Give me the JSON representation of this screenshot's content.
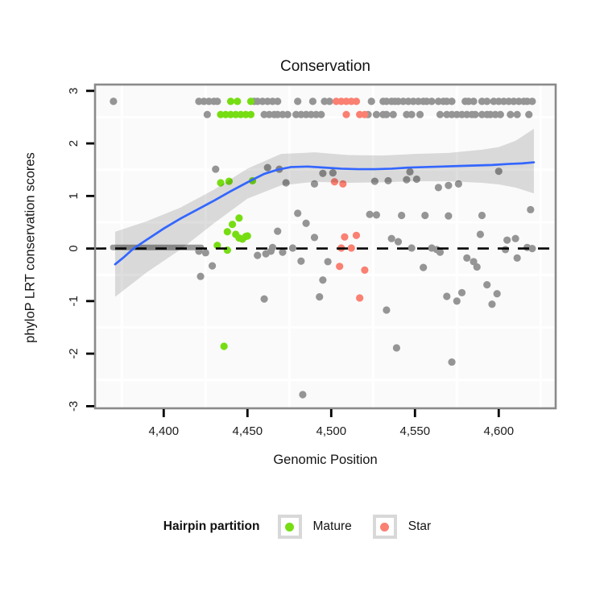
{
  "title": "Conservation",
  "axes": {
    "x": {
      "label": "Genomic Position",
      "ticks": [
        4400,
        4450,
        4500,
        4550,
        4600
      ],
      "tick_labels": [
        "4,400",
        "4,450",
        "4,500",
        "4,550",
        "4,600"
      ],
      "minor_gridlines": [
        4375,
        4425,
        4475,
        4525,
        4575,
        4625
      ],
      "lim": [
        4359,
        4634
      ]
    },
    "y": {
      "label": "phyloP LRT conservation scores",
      "ticks": [
        3,
        2,
        1,
        0,
        -1,
        -2,
        -3
      ],
      "tick_labels": [
        "3",
        "2",
        "1",
        "0",
        "-1",
        "-2",
        "-3"
      ],
      "minor_gridlines": [
        2.5,
        1.5,
        0.5,
        -0.5,
        -1.5,
        -2.5
      ],
      "lim": [
        -3.04,
        3.12
      ]
    }
  },
  "legend": {
    "title": "Hairpin partition",
    "items": [
      {
        "label": "Mature",
        "color": "#76DD13"
      },
      {
        "label": "Star",
        "color": "#FA8072"
      }
    ]
  },
  "colors": {
    "gray_points": "#959595",
    "mature": "#76DD13",
    "star": "#FA8072",
    "smooth_line": "#3366FF",
    "ribbon": "rgba(0,0,0,0.13)",
    "zero_band": "#8E8E8E",
    "panel_bg": "#FAFAFA",
    "gridline": "#FFFFFF",
    "panel_border": "#8A8A8A",
    "dashed_line": "#000000"
  },
  "chart_data": {
    "type": "scatter",
    "title": "Conservation",
    "xlabel": "Genomic Position",
    "ylabel": "phyloP LRT conservation scores",
    "series": [
      {
        "name": "unpartitioned",
        "color_key": "gray_points",
        "rows": [
          {
            "y": 2.8,
            "x": [
              4370,
              4421,
              4424,
              4427,
              4430,
              4432,
              4454,
              4456,
              4459,
              4462,
              4465,
              4468,
              4480,
              4489,
              4496,
              4499,
              4524,
              4531,
              4533,
              4536,
              4538,
              4540,
              4543,
              4546,
              4549,
              4552,
              4555,
              4557,
              4560,
              4564,
              4567,
              4569,
              4572,
              4580,
              4582,
              4585,
              4590,
              4593,
              4597,
              4600,
              4603,
              4606,
              4609,
              4612,
              4615,
              4617,
              4620
            ]
          },
          {
            "y": 2.55,
            "x": [
              4426,
              4460,
              4463,
              4466,
              4468,
              4471,
              4474,
              4479,
              4482,
              4485,
              4488,
              4491,
              4494,
              4522,
              4527,
              4531,
              4533,
              4537,
              4545,
              4548,
              4553,
              4565,
              4569,
              4572,
              4575,
              4578,
              4581,
              4584,
              4586,
              4590,
              4593,
              4595,
              4598,
              4601,
              4607,
              4611,
              4618
            ]
          }
        ],
        "points": [
          [
            4431,
            1.51
          ],
          [
            4462,
            1.54
          ],
          [
            4469,
            1.51
          ],
          [
            4473,
            1.25
          ],
          [
            4490,
            1.23
          ],
          [
            4495,
            1.43
          ],
          [
            4501,
            1.44
          ],
          [
            4526,
            1.28
          ],
          [
            4534,
            1.29
          ],
          [
            4545,
            1.31
          ],
          [
            4547,
            1.46
          ],
          [
            4551,
            1.32
          ],
          [
            4564,
            1.16
          ],
          [
            4570,
            1.2
          ],
          [
            4576,
            1.23
          ],
          [
            4600,
            1.47
          ],
          [
            4619,
            0.74
          ],
          [
            4480,
            0.67
          ],
          [
            4485,
            0.48
          ],
          [
            4523,
            0.65
          ],
          [
            4527,
            0.64
          ],
          [
            4542,
            0.63
          ],
          [
            4556,
            0.63
          ],
          [
            4570,
            0.62
          ],
          [
            4590,
            0.63
          ],
          [
            4468,
            0.33
          ],
          [
            4490,
            0.21
          ],
          [
            4536,
            0.19
          ],
          [
            4540,
            0.13
          ],
          [
            4589,
            0.27
          ],
          [
            4605,
            0.16
          ],
          [
            4610,
            0.19
          ],
          [
            4421,
            -0.05
          ],
          [
            4425,
            -0.08
          ],
          [
            4429,
            -0.33
          ],
          [
            4422,
            -0.53
          ],
          [
            4456,
            -0.13
          ],
          [
            4461,
            -0.1
          ],
          [
            4464,
            -0.05
          ],
          [
            4465,
            0.02
          ],
          [
            4471,
            -0.07
          ],
          [
            4477,
            0.01
          ],
          [
            4482,
            -0.24
          ],
          [
            4498,
            -0.25
          ],
          [
            4495,
            -0.6
          ],
          [
            4548,
            0.01
          ],
          [
            4560,
            0.01
          ],
          [
            4563,
            -0.02
          ],
          [
            4565,
            -0.07
          ],
          [
            4555,
            -0.36
          ],
          [
            4581,
            -0.18
          ],
          [
            4585,
            -0.25
          ],
          [
            4587,
            -0.35
          ],
          [
            4604,
            -0.02
          ],
          [
            4611,
            -0.18
          ],
          [
            4617,
            0.02
          ],
          [
            4620,
            0.0
          ],
          [
            4460,
            -0.96
          ],
          [
            4493,
            -0.92
          ],
          [
            4533,
            -1.17
          ],
          [
            4539,
            -1.89
          ],
          [
            4569,
            -0.91
          ],
          [
            4575,
            -1.0
          ],
          [
            4578,
            -0.84
          ],
          [
            4593,
            -0.69
          ],
          [
            4596,
            -1.06
          ],
          [
            4599,
            -0.86
          ],
          [
            4572,
            -2.16
          ],
          [
            4483,
            -2.78
          ]
        ]
      },
      {
        "name": "Mature",
        "color_key": "mature",
        "rows": [
          {
            "y": 2.8,
            "x": [
              4440,
              4444,
              4452
            ]
          },
          {
            "y": 2.55,
            "x": [
              4434,
              4437,
              4440,
              4443,
              4446,
              4449,
              4452
            ]
          }
        ],
        "points": [
          [
            4434,
            1.25
          ],
          [
            4439,
            1.28
          ],
          [
            4453,
            1.29
          ],
          [
            4445,
            0.58
          ],
          [
            4441,
            0.46
          ],
          [
            4438,
            0.32
          ],
          [
            4443,
            0.27
          ],
          [
            4445,
            0.2
          ],
          [
            4447,
            0.18
          ],
          [
            4449,
            0.23
          ],
          [
            4450,
            0.24
          ],
          [
            4432,
            0.06
          ],
          [
            4438,
            -0.03
          ],
          [
            4436,
            -1.86
          ]
        ]
      },
      {
        "name": "Star",
        "color_key": "star",
        "rows": [
          {
            "y": 2.8,
            "x": [
              4503,
              4506,
              4509,
              4512,
              4515
            ]
          },
          {
            "y": 2.55,
            "x": [
              4509,
              4517,
              4520
            ]
          }
        ],
        "points": [
          [
            4502,
            1.27
          ],
          [
            4507,
            1.23
          ],
          [
            4508,
            0.22
          ],
          [
            4515,
            0.25
          ],
          [
            4506,
            0.01
          ],
          [
            4512,
            0.01
          ],
          [
            4505,
            -0.34
          ],
          [
            4520,
            -0.41
          ],
          [
            4517,
            -0.94
          ]
        ]
      }
    ],
    "zero_band": {
      "x1": 4368,
      "x2": 4424,
      "y": 0.02
    },
    "dashed_hline": {
      "y": 0
    },
    "smooth_line": [
      [
        4371,
        -0.3
      ],
      [
        4376,
        -0.17
      ],
      [
        4382,
        0.0
      ],
      [
        4390,
        0.17
      ],
      [
        4400,
        0.38
      ],
      [
        4410,
        0.57
      ],
      [
        4420,
        0.74
      ],
      [
        4430,
        0.91
      ],
      [
        4440,
        1.09
      ],
      [
        4450,
        1.26
      ],
      [
        4460,
        1.42
      ],
      [
        4468,
        1.5
      ],
      [
        4476,
        1.55
      ],
      [
        4486,
        1.56
      ],
      [
        4496,
        1.54
      ],
      [
        4506,
        1.52
      ],
      [
        4516,
        1.51
      ],
      [
        4526,
        1.51
      ],
      [
        4536,
        1.52
      ],
      [
        4546,
        1.54
      ],
      [
        4556,
        1.55
      ],
      [
        4566,
        1.56
      ],
      [
        4576,
        1.57
      ],
      [
        4586,
        1.58
      ],
      [
        4596,
        1.59
      ],
      [
        4606,
        1.61
      ],
      [
        4614,
        1.62
      ],
      [
        4621,
        1.64
      ]
    ],
    "ribbon": [
      [
        4371,
        -0.92,
        0.32
      ],
      [
        4390,
        -0.45,
        0.52
      ],
      [
        4410,
        -0.02,
        0.78
      ],
      [
        4430,
        0.48,
        1.12
      ],
      [
        4450,
        0.95,
        1.52
      ],
      [
        4470,
        1.2,
        1.8
      ],
      [
        4490,
        1.27,
        1.83
      ],
      [
        4510,
        1.25,
        1.78
      ],
      [
        4530,
        1.26,
        1.77
      ],
      [
        4550,
        1.28,
        1.8
      ],
      [
        4570,
        1.28,
        1.82
      ],
      [
        4590,
        1.25,
        1.88
      ],
      [
        4600,
        1.22,
        1.93
      ],
      [
        4610,
        1.16,
        2.05
      ],
      [
        4621,
        1.05,
        2.28
      ]
    ],
    "legend_position": "bottom",
    "grid": "minor-only-white"
  }
}
